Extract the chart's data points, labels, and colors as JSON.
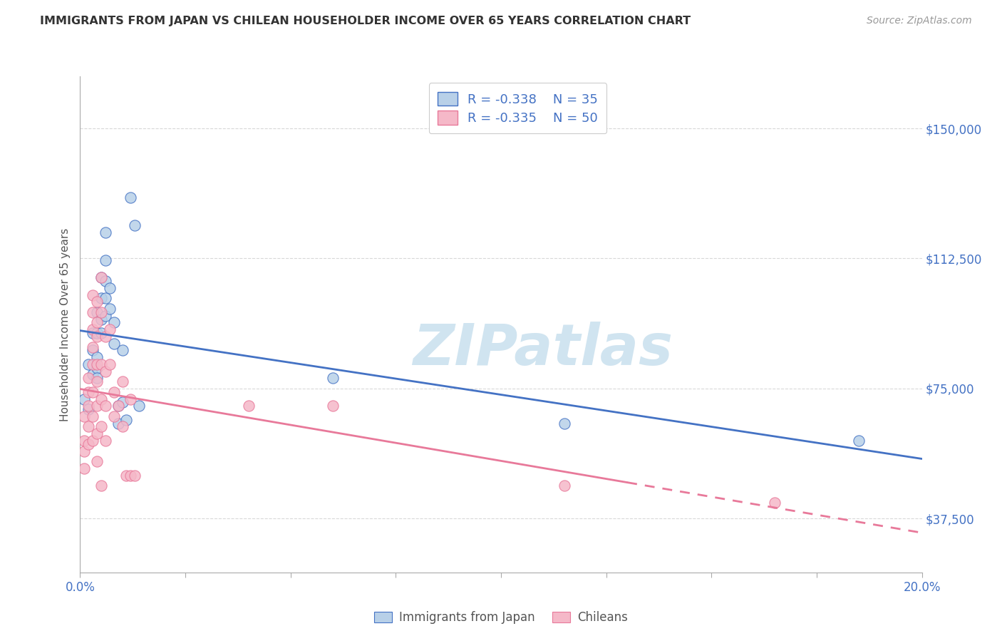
{
  "title": "IMMIGRANTS FROM JAPAN VS CHILEAN HOUSEHOLDER INCOME OVER 65 YEARS CORRELATION CHART",
  "source": "Source: ZipAtlas.com",
  "ylabel": "Householder Income Over 65 years",
  "legend_bottom": [
    "Immigrants from Japan",
    "Chileans"
  ],
  "japan_R": -0.338,
  "japan_N": 35,
  "chile_R": -0.335,
  "chile_N": 50,
  "ytick_labels": [
    "$37,500",
    "$75,000",
    "$112,500",
    "$150,000"
  ],
  "ytick_values": [
    37500,
    75000,
    112500,
    150000
  ],
  "xmin": 0.0,
  "xmax": 0.2,
  "ymin": 22000,
  "ymax": 165000,
  "japan_color": "#b8d0e8",
  "chile_color": "#f5b8c8",
  "japan_line_color": "#4472c4",
  "chile_line_color": "#e8799a",
  "japan_scatter": [
    [
      0.001,
      72000
    ],
    [
      0.002,
      82000
    ],
    [
      0.002,
      69000
    ],
    [
      0.003,
      91000
    ],
    [
      0.003,
      86000
    ],
    [
      0.003,
      79000
    ],
    [
      0.004,
      97000
    ],
    [
      0.004,
      91000
    ],
    [
      0.004,
      84000
    ],
    [
      0.004,
      81000
    ],
    [
      0.004,
      78000
    ],
    [
      0.005,
      107000
    ],
    [
      0.005,
      101000
    ],
    [
      0.005,
      95000
    ],
    [
      0.005,
      91000
    ],
    [
      0.006,
      120000
    ],
    [
      0.006,
      112000
    ],
    [
      0.006,
      106000
    ],
    [
      0.006,
      101000
    ],
    [
      0.006,
      96000
    ],
    [
      0.007,
      104000
    ],
    [
      0.007,
      98000
    ],
    [
      0.008,
      94000
    ],
    [
      0.008,
      88000
    ],
    [
      0.009,
      70000
    ],
    [
      0.009,
      65000
    ],
    [
      0.01,
      86000
    ],
    [
      0.01,
      71000
    ],
    [
      0.011,
      66000
    ],
    [
      0.012,
      130000
    ],
    [
      0.013,
      122000
    ],
    [
      0.014,
      70000
    ],
    [
      0.06,
      78000
    ],
    [
      0.115,
      65000
    ],
    [
      0.185,
      60000
    ]
  ],
  "chile_scatter": [
    [
      0.001,
      67000
    ],
    [
      0.001,
      60000
    ],
    [
      0.001,
      57000
    ],
    [
      0.001,
      52000
    ],
    [
      0.002,
      78000
    ],
    [
      0.002,
      74000
    ],
    [
      0.002,
      70000
    ],
    [
      0.002,
      64000
    ],
    [
      0.002,
      59000
    ],
    [
      0.003,
      102000
    ],
    [
      0.003,
      97000
    ],
    [
      0.003,
      92000
    ],
    [
      0.003,
      87000
    ],
    [
      0.003,
      82000
    ],
    [
      0.003,
      74000
    ],
    [
      0.003,
      67000
    ],
    [
      0.003,
      60000
    ],
    [
      0.004,
      100000
    ],
    [
      0.004,
      94000
    ],
    [
      0.004,
      90000
    ],
    [
      0.004,
      82000
    ],
    [
      0.004,
      77000
    ],
    [
      0.004,
      70000
    ],
    [
      0.004,
      62000
    ],
    [
      0.004,
      54000
    ],
    [
      0.005,
      107000
    ],
    [
      0.005,
      97000
    ],
    [
      0.005,
      82000
    ],
    [
      0.005,
      72000
    ],
    [
      0.005,
      64000
    ],
    [
      0.005,
      47000
    ],
    [
      0.006,
      90000
    ],
    [
      0.006,
      80000
    ],
    [
      0.006,
      70000
    ],
    [
      0.006,
      60000
    ],
    [
      0.007,
      92000
    ],
    [
      0.007,
      82000
    ],
    [
      0.008,
      74000
    ],
    [
      0.008,
      67000
    ],
    [
      0.009,
      70000
    ],
    [
      0.01,
      77000
    ],
    [
      0.01,
      64000
    ],
    [
      0.011,
      50000
    ],
    [
      0.012,
      72000
    ],
    [
      0.012,
      50000
    ],
    [
      0.013,
      50000
    ],
    [
      0.04,
      70000
    ],
    [
      0.06,
      70000
    ],
    [
      0.115,
      47000
    ],
    [
      0.165,
      42000
    ]
  ],
  "background_color": "#ffffff",
  "grid_color": "#d8d8d8",
  "title_color": "#333333",
  "axis_label_color": "#4472c4",
  "watermark_text": "ZIPatlas",
  "watermark_color": "#d0e4f0"
}
